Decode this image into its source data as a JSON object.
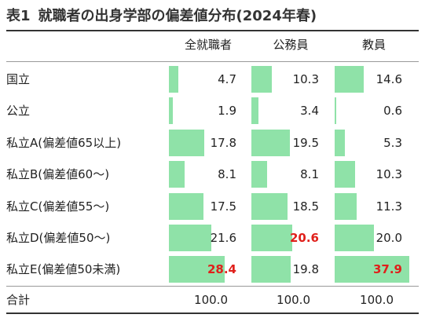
{
  "title": {
    "prefix": "表1",
    "text": "就職者の出身学部の偏差値分布(2024年春)"
  },
  "chart_data": {
    "type": "table",
    "columns": [
      "全就職者",
      "公務員",
      "教員"
    ],
    "rows": [
      {
        "label": "国立",
        "values": [
          4.7,
          10.3,
          14.6
        ],
        "display": [
          "4.7",
          "10.3",
          "14.6"
        ]
      },
      {
        "label": "公立",
        "values": [
          1.9,
          3.4,
          0.6
        ],
        "display": [
          "1.9",
          "3.4",
          "0.6"
        ]
      },
      {
        "label": "私立A(偏差値65以上)",
        "values": [
          17.8,
          19.5,
          5.3
        ],
        "display": [
          "17.8",
          "19.5",
          "5.3"
        ]
      },
      {
        "label": "私立B(偏差値60〜)",
        "values": [
          8.1,
          8.1,
          10.3
        ],
        "display": [
          "8.1",
          "8.1",
          "10.3"
        ]
      },
      {
        "label": "私立C(偏差値55〜)",
        "values": [
          17.5,
          18.5,
          11.3
        ],
        "display": [
          "17.5",
          "18.5",
          "11.3"
        ]
      },
      {
        "label": "私立D(偏差値50〜)",
        "values": [
          21.6,
          20.6,
          20.0
        ],
        "display": [
          "21.6",
          "20.6",
          "20.0"
        ]
      },
      {
        "label": "私立E(偏差値50未満)",
        "values": [
          28.4,
          19.8,
          37.9
        ],
        "display": [
          "28.4",
          "19.8",
          "37.9"
        ]
      }
    ],
    "highlighted": [
      {
        "row": 6,
        "col": 0
      },
      {
        "row": 5,
        "col": 1
      },
      {
        "row": 6,
        "col": 2
      }
    ],
    "highlight_color": "#e0201b",
    "bar_color": "#8fe2a8",
    "bar_max_value": 40,
    "total": {
      "label": "合計",
      "display": [
        "100.0",
        "100.0",
        "100.0"
      ]
    }
  }
}
